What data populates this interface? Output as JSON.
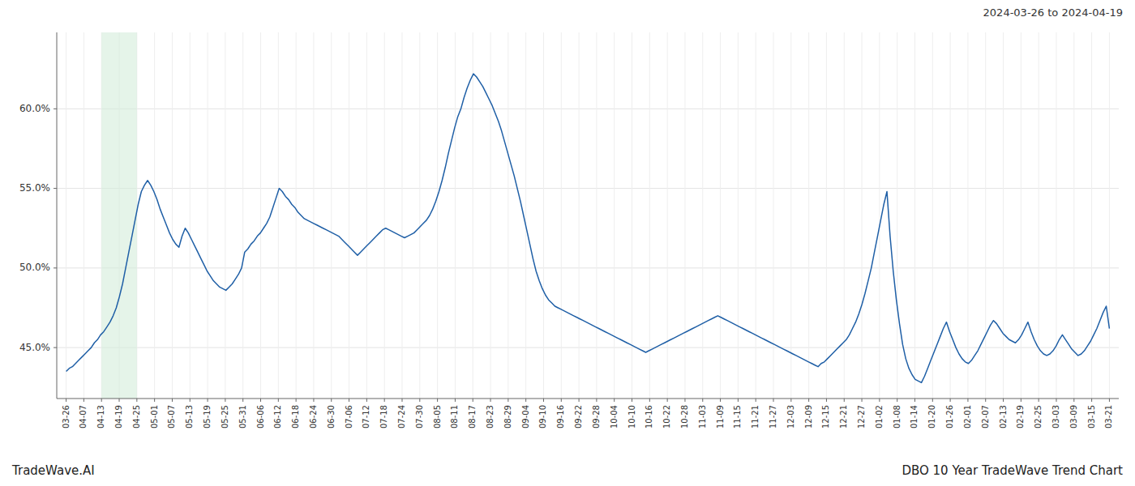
{
  "chart_data": {
    "type": "line",
    "title": "DBO 10 Year TradeWave Trend Chart",
    "subtitle": "2024-03-26 to 2024-04-19",
    "annotations": [
      "TradeWave.AI"
    ],
    "color": "#1f5fa6",
    "grid": true,
    "highlight": {
      "from": 11.2881,
      "to": 22.5763,
      "color": "#d4edda"
    },
    "xlim": [
      -3,
      336
    ],
    "xticks": [
      {
        "value": 0,
        "label": "03-26"
      },
      {
        "value": 5.6441,
        "label": "04-07"
      },
      {
        "value": 11.2881,
        "label": "04-13"
      },
      {
        "value": 16.9322,
        "label": "04-19"
      },
      {
        "value": 22.5763,
        "label": "04-25"
      },
      {
        "value": 28.2203,
        "label": "05-01"
      },
      {
        "value": 33.8644,
        "label": "05-07"
      },
      {
        "value": 39.5085,
        "label": "05-13"
      },
      {
        "value": 45.1525,
        "label": "05-19"
      },
      {
        "value": 50.7966,
        "label": "05-25"
      },
      {
        "value": 56.4407,
        "label": "05-31"
      },
      {
        "value": 62.0847,
        "label": "06-06"
      },
      {
        "value": 67.7288,
        "label": "06-12"
      },
      {
        "value": 73.3729,
        "label": "06-18"
      },
      {
        "value": 79.0169,
        "label": "06-24"
      },
      {
        "value": 84.661,
        "label": "06-30"
      },
      {
        "value": 90.3051,
        "label": "07-06"
      },
      {
        "value": 95.9492,
        "label": "07-12"
      },
      {
        "value": 101.5932,
        "label": "07-18"
      },
      {
        "value": 107.2373,
        "label": "07-24"
      },
      {
        "value": 112.8814,
        "label": "07-30"
      },
      {
        "value": 118.5254,
        "label": "08-05"
      },
      {
        "value": 124.1695,
        "label": "08-11"
      },
      {
        "value": 129.8136,
        "label": "08-17"
      },
      {
        "value": 135.4576,
        "label": "08-23"
      },
      {
        "value": 141.1017,
        "label": "08-29"
      },
      {
        "value": 146.7458,
        "label": "09-04"
      },
      {
        "value": 152.3898,
        "label": "09-10"
      },
      {
        "value": 158.0339,
        "label": "09-16"
      },
      {
        "value": 163.678,
        "label": "09-22"
      },
      {
        "value": 169.322,
        "label": "09-28"
      },
      {
        "value": 174.9661,
        "label": "10-04"
      },
      {
        "value": 180.6102,
        "label": "10-10"
      },
      {
        "value": 186.2542,
        "label": "10-16"
      },
      {
        "value": 191.8983,
        "label": "10-22"
      },
      {
        "value": 197.5424,
        "label": "10-28"
      },
      {
        "value": 203.1864,
        "label": "11-03"
      },
      {
        "value": 208.8305,
        "label": "11-09"
      },
      {
        "value": 214.4746,
        "label": "11-15"
      },
      {
        "value": 220.1186,
        "label": "11-21"
      },
      {
        "value": 225.7627,
        "label": "11-27"
      },
      {
        "value": 231.4068,
        "label": "12-03"
      },
      {
        "value": 237.0508,
        "label": "12-09"
      },
      {
        "value": 242.6949,
        "label": "12-15"
      },
      {
        "value": 248.339,
        "label": "12-21"
      },
      {
        "value": 253.9831,
        "label": "12-27"
      },
      {
        "value": 259.6271,
        "label": "01-02"
      },
      {
        "value": 265.2712,
        "label": "01-08"
      },
      {
        "value": 270.9153,
        "label": "01-14"
      },
      {
        "value": 276.5593,
        "label": "01-20"
      },
      {
        "value": 282.2034,
        "label": "01-26"
      },
      {
        "value": 287.8475,
        "label": "02-01"
      },
      {
        "value": 293.4915,
        "label": "02-07"
      },
      {
        "value": 299.1356,
        "label": "02-13"
      },
      {
        "value": 304.7797,
        "label": "02-19"
      },
      {
        "value": 310.4237,
        "label": "02-25"
      },
      {
        "value": 316.0678,
        "label": "03-03"
      },
      {
        "value": 321.7119,
        "label": "03-09"
      },
      {
        "value": 327.3559,
        "label": "03-15"
      },
      {
        "value": 333,
        "label": "03-21"
      }
    ],
    "ylim": [
      0.418,
      0.648
    ],
    "yticks": [
      {
        "value": 0.45,
        "label": "45.0%"
      },
      {
        "value": 0.5,
        "label": "50.0%"
      },
      {
        "value": 0.55,
        "label": "55.0%"
      },
      {
        "value": 0.6,
        "label": "60.0%"
      }
    ],
    "values": [
      0.435,
      0.437,
      0.438,
      0.44,
      0.442,
      0.444,
      0.446,
      0.448,
      0.45,
      0.453,
      0.455,
      0.458,
      0.46,
      0.463,
      0.466,
      0.47,
      0.475,
      0.482,
      0.49,
      0.5,
      0.51,
      0.52,
      0.53,
      0.54,
      0.548,
      0.552,
      0.555,
      0.552,
      0.548,
      0.543,
      0.537,
      0.532,
      0.527,
      0.522,
      0.518,
      0.515,
      0.513,
      0.52,
      0.525,
      0.522,
      0.518,
      0.514,
      0.51,
      0.506,
      0.502,
      0.498,
      0.495,
      0.492,
      0.49,
      0.488,
      0.487,
      0.486,
      0.488,
      0.49,
      0.493,
      0.496,
      0.5,
      0.51,
      0.512,
      0.515,
      0.517,
      0.52,
      0.522,
      0.525,
      0.528,
      0.532,
      0.538,
      0.544,
      0.55,
      0.548,
      0.545,
      0.543,
      0.54,
      0.538,
      0.535,
      0.533,
      0.531,
      0.53,
      0.529,
      0.528,
      0.527,
      0.526,
      0.525,
      0.524,
      0.523,
      0.522,
      0.521,
      0.52,
      0.518,
      0.516,
      0.514,
      0.512,
      0.51,
      0.508,
      0.51,
      0.512,
      0.514,
      0.516,
      0.518,
      0.52,
      0.522,
      0.524,
      0.525,
      0.524,
      0.523,
      0.522,
      0.521,
      0.52,
      0.519,
      0.52,
      0.521,
      0.522,
      0.524,
      0.526,
      0.528,
      0.53,
      0.533,
      0.537,
      0.542,
      0.548,
      0.555,
      0.563,
      0.572,
      0.58,
      0.588,
      0.595,
      0.6,
      0.607,
      0.613,
      0.618,
      0.622,
      0.62,
      0.617,
      0.614,
      0.61,
      0.606,
      0.602,
      0.597,
      0.592,
      0.586,
      0.579,
      0.572,
      0.565,
      0.558,
      0.55,
      0.542,
      0.533,
      0.524,
      0.515,
      0.506,
      0.498,
      0.492,
      0.487,
      0.483,
      0.48,
      0.478,
      0.476,
      0.475,
      0.474,
      0.473,
      0.472,
      0.471,
      0.47,
      0.469,
      0.468,
      0.467,
      0.466,
      0.465,
      0.464,
      0.463,
      0.462,
      0.461,
      0.46,
      0.459,
      0.458,
      0.457,
      0.456,
      0.455,
      0.454,
      0.453,
      0.452,
      0.451,
      0.45,
      0.449,
      0.448,
      0.447,
      0.448,
      0.449,
      0.45,
      0.451,
      0.452,
      0.453,
      0.454,
      0.455,
      0.456,
      0.457,
      0.458,
      0.459,
      0.46,
      0.461,
      0.462,
      0.463,
      0.464,
      0.465,
      0.466,
      0.467,
      0.468,
      0.469,
      0.47,
      0.469,
      0.468,
      0.467,
      0.466,
      0.465,
      0.464,
      0.463,
      0.462,
      0.461,
      0.46,
      0.459,
      0.458,
      0.457,
      0.456,
      0.455,
      0.454,
      0.453,
      0.452,
      0.451,
      0.45,
      0.449,
      0.448,
      0.447,
      0.446,
      0.445,
      0.444,
      0.443,
      0.442,
      0.441,
      0.44,
      0.439,
      0.438,
      0.44,
      0.441,
      0.443,
      0.445,
      0.447,
      0.449,
      0.451,
      0.453,
      0.455,
      0.458,
      0.462,
      0.466,
      0.471,
      0.477,
      0.484,
      0.492,
      0.5,
      0.51,
      0.52,
      0.53,
      0.54,
      0.548,
      0.52,
      0.498,
      0.48,
      0.465,
      0.452,
      0.443,
      0.437,
      0.433,
      0.43,
      0.429,
      0.428,
      0.432,
      0.437,
      0.442,
      0.447,
      0.452,
      0.457,
      0.462,
      0.466,
      0.46,
      0.455,
      0.45,
      0.446,
      0.443,
      0.441,
      0.44,
      0.442,
      0.445,
      0.448,
      0.452,
      0.456,
      0.46,
      0.464,
      0.467,
      0.465,
      0.462,
      0.459,
      0.457,
      0.455,
      0.454,
      0.453,
      0.455,
      0.458,
      0.462,
      0.466,
      0.46,
      0.455,
      0.451,
      0.448,
      0.446,
      0.445,
      0.446,
      0.448,
      0.451,
      0.455,
      0.458,
      0.455,
      0.452,
      0.449,
      0.447,
      0.445,
      0.446,
      0.448,
      0.451,
      0.454,
      0.458,
      0.462,
      0.467,
      0.472,
      0.476,
      0.462
    ]
  }
}
